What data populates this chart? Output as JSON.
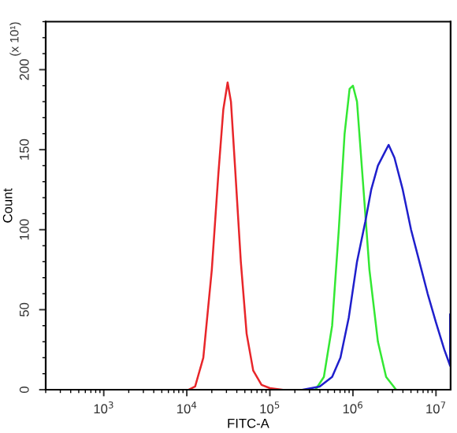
{
  "chart_data": {
    "type": "line",
    "xlabel": "FITC-A",
    "ylabel": "Count",
    "log": "x",
    "annotations": [
      "(x 10¹)"
    ],
    "xlim": [
      200,
      15000000
    ],
    "ylim": [
      0,
      230
    ],
    "xticks": [
      {
        "value": 1000,
        "label": "10$^{3}$"
      },
      {
        "value": 10000,
        "label": "10$^{4}$"
      },
      {
        "value": 100000,
        "label": "10$^{5}$"
      },
      {
        "value": 1000000,
        "label": "10$^{6}$"
      },
      {
        "value": 10000000,
        "label": "10$^{7}$"
      }
    ],
    "yticks": [
      0,
      50,
      100,
      150,
      200
    ],
    "grid": false,
    "legend": false,
    "marker": "none",
    "line_style": "solid",
    "series": [
      {
        "color": "#e8262a",
        "x": [
          10500,
          12600,
          15800,
          20000,
          24000,
          27500,
          31000,
          34000,
          38000,
          44700,
          52500,
          63000,
          79400,
          100000,
          141000
        ],
        "values": [
          0,
          2,
          20,
          75,
          135,
          175,
          192,
          180,
          140,
          80,
          35,
          12,
          3,
          1,
          0
        ]
      },
      {
        "color": "#33e833",
        "x": [
          355000,
          447000,
          562000,
          676000,
          794000,
          912000,
          1000000,
          1120000,
          1320000,
          1580000,
          2000000,
          2510000,
          3310000
        ],
        "values": [
          0,
          8,
          40,
          100,
          160,
          188,
          190,
          180,
          130,
          75,
          30,
          8,
          0
        ]
      },
      {
        "color": "#1f1fcc",
        "x": [
          251000,
          398000,
          562000,
          708000,
          891000,
          1120000,
          1410000,
          1660000,
          2000000,
          2400000,
          2690000,
          3160000,
          3980000,
          5010000,
          6310000,
          7940000,
          10000000,
          12600000,
          14800000,
          14800000
        ],
        "values": [
          0,
          2,
          8,
          20,
          45,
          80,
          105,
          125,
          140,
          148,
          153,
          145,
          125,
          100,
          80,
          60,
          42,
          25,
          15,
          47
        ]
      }
    ]
  }
}
